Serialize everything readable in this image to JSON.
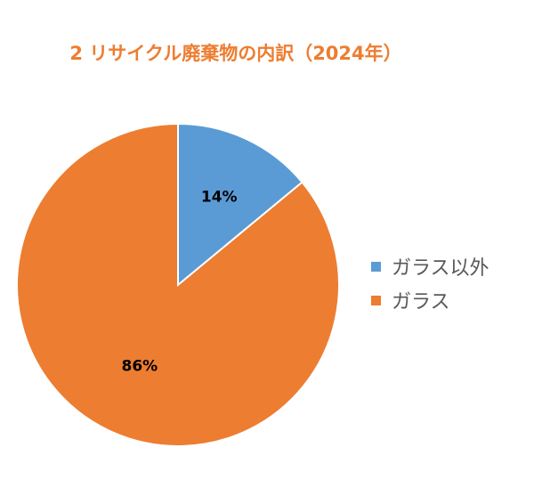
{
  "chart_data": {
    "type": "pie",
    "title": "2 リサイクル廃棄物の内訳（2024年）",
    "categories": [
      "ガラス以外",
      "ガラス"
    ],
    "values": [
      14,
      86
    ],
    "data_labels": [
      "14%",
      "86%"
    ],
    "colors": [
      "#5B9BD5",
      "#ED7D31"
    ],
    "legend_position": "right"
  }
}
